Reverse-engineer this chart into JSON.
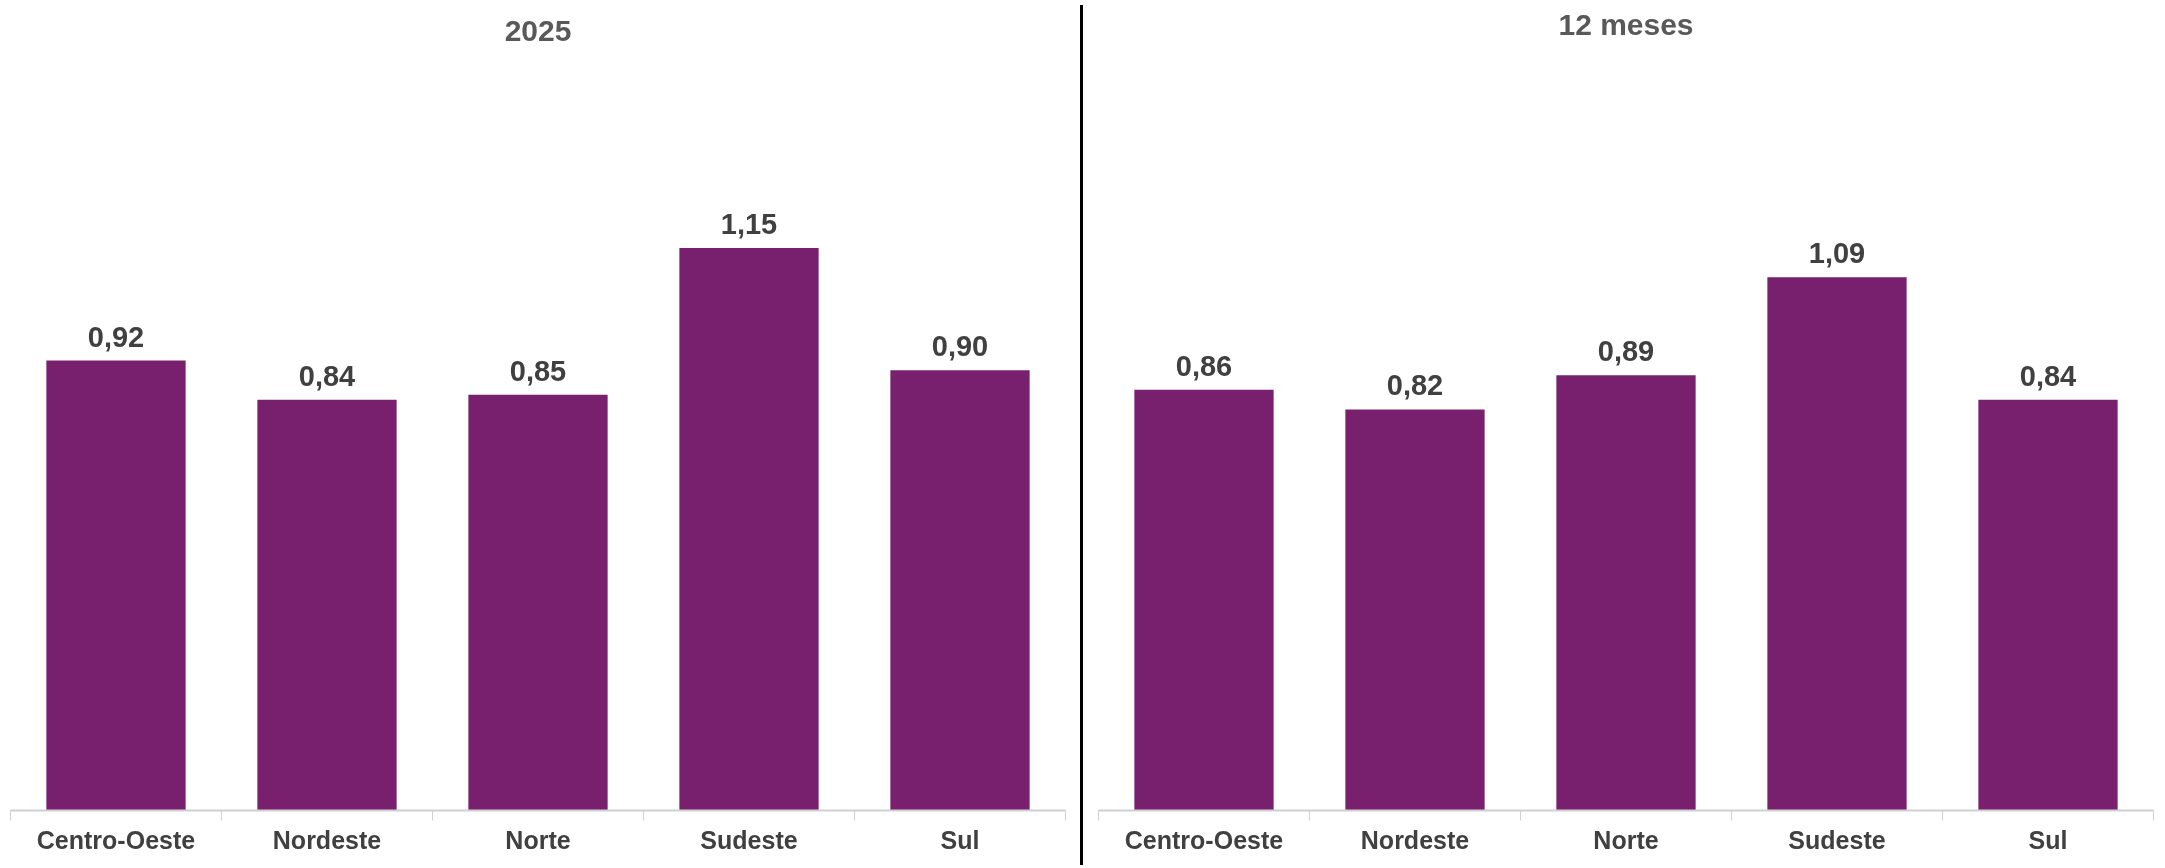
{
  "chart_data": [
    {
      "type": "bar",
      "title": "2025",
      "categories": [
        "Centro-Oeste",
        "Nordeste",
        "Norte",
        "Sudeste",
        "Sul"
      ],
      "values": [
        0.92,
        0.84,
        0.85,
        1.15,
        0.9
      ],
      "value_labels": [
        "0,92",
        "0,84",
        "0,85",
        "1,15",
        "0,90"
      ],
      "color": "#78206e",
      "grid": false
    },
    {
      "type": "bar",
      "title": "12 meses",
      "categories": [
        "Centro-Oeste",
        "Nordeste",
        "Norte",
        "Sudeste",
        "Sul"
      ],
      "values": [
        0.86,
        0.82,
        0.89,
        1.09,
        0.84
      ],
      "value_labels": [
        "0,86",
        "0,82",
        "0,89",
        "1,09",
        "0,84"
      ],
      "color": "#78206e",
      "grid": false
    }
  ]
}
